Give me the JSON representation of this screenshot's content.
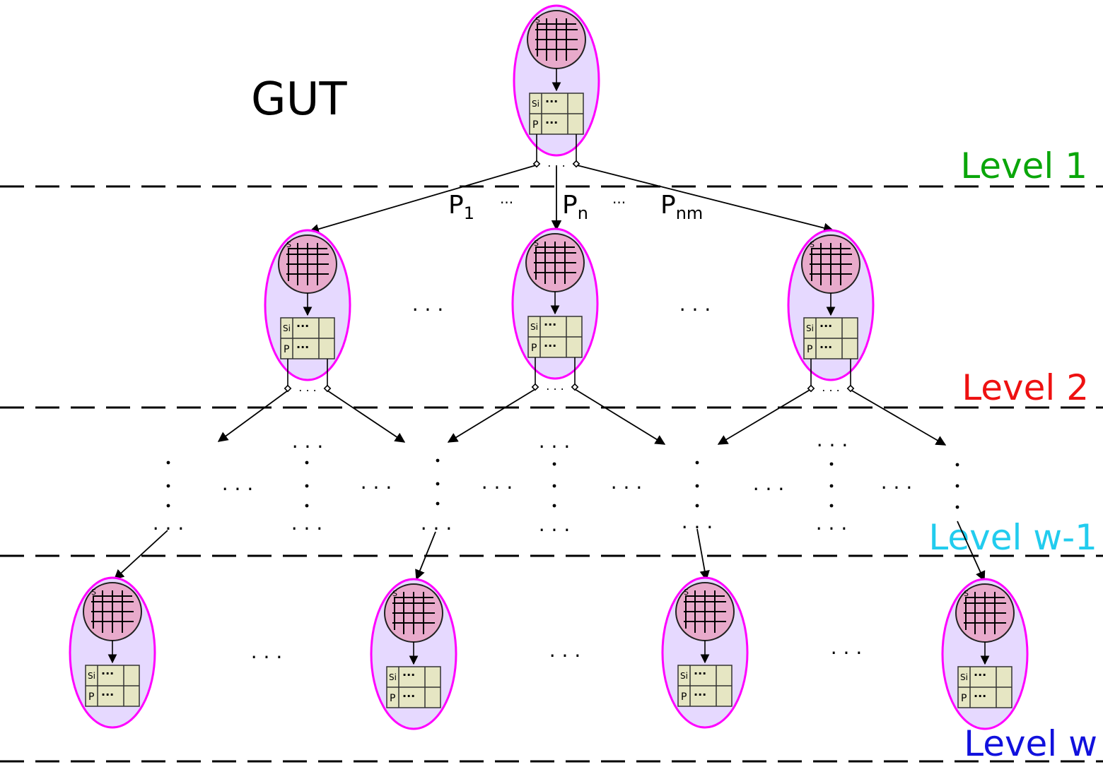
{
  "title": "GUT",
  "levels": [
    {
      "label": "Level 1",
      "color": "#0aa60a"
    },
    {
      "label": "Level 2",
      "color": "#ee1111"
    },
    {
      "label": "Level w-1",
      "color": "#22ccee"
    },
    {
      "label": "Level w",
      "color": "#1111dd"
    }
  ],
  "edge_labels": {
    "p1": "P",
    "p1_sub": "1",
    "pn": "P",
    "pn_sub": "n",
    "pnm": "P",
    "pnm_sub": "nm",
    "ellipsis": "···"
  },
  "node_text": {
    "s_label": "S",
    "row1_label": "Si",
    "row2_label": "P",
    "cell_dots": "···"
  },
  "ellipsis_text": ". . .",
  "colors": {
    "node_border": "#ff00ff",
    "node_fill": "#e6d9ff",
    "circle_fill": "#e8aacb",
    "table_fill": "#e6e6c3",
    "line": "#000000"
  }
}
